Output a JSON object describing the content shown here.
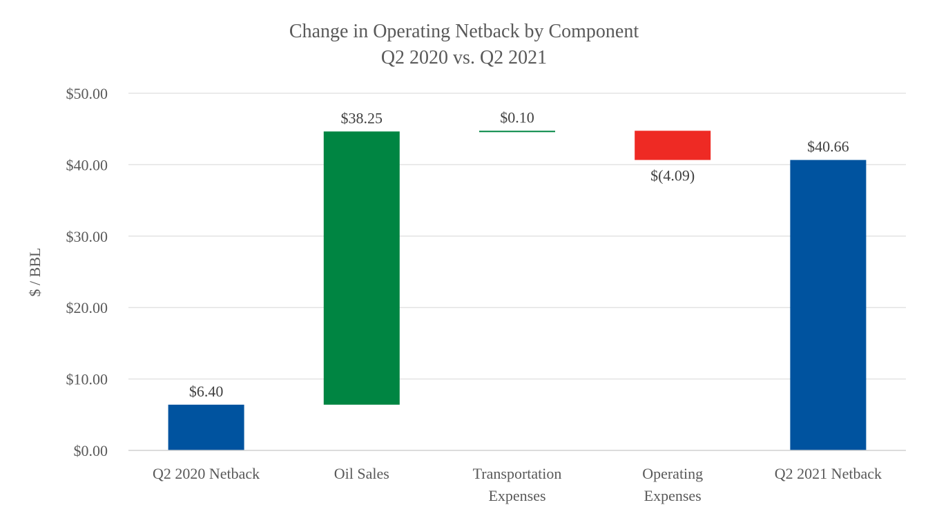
{
  "chart_data": {
    "type": "bar",
    "subtype": "waterfall",
    "title": "Change in Operating Netback by Component",
    "subtitle": "Q2 2020 vs. Q2 2021",
    "xlabel": "",
    "ylabel": "$ / BBL",
    "ylim": [
      0,
      50
    ],
    "yticks": [
      0,
      10,
      20,
      30,
      40,
      50
    ],
    "ytick_labels": [
      "$0.00",
      "$10.00",
      "$20.00",
      "$30.00",
      "$40.00",
      "$50.00"
    ],
    "grid": true,
    "legend": "none",
    "categories": [
      [
        "Q2 2020 Netback"
      ],
      [
        "Oil Sales"
      ],
      [
        "Transportation",
        "Expenses"
      ],
      [
        "Operating",
        "Expenses"
      ],
      [
        "Q2 2021 Netback"
      ]
    ],
    "bars": [
      {
        "kind": "total",
        "start": 0,
        "end": 6.4,
        "value": 6.4,
        "label": "$6.40",
        "color": "#00539F"
      },
      {
        "kind": "increase",
        "start": 6.4,
        "end": 44.65,
        "value": 38.25,
        "label": "$38.25",
        "color": "#008542"
      },
      {
        "kind": "increase",
        "start": 44.65,
        "end": 44.75,
        "value": 0.1,
        "label": "$0.10",
        "color": "#008542"
      },
      {
        "kind": "decrease",
        "start": 44.75,
        "end": 40.66,
        "value": -4.09,
        "label": "$(4.09)",
        "color": "#EE2A24"
      },
      {
        "kind": "total",
        "start": 0,
        "end": 40.66,
        "value": 40.66,
        "label": "$40.66",
        "color": "#00539F"
      }
    ]
  }
}
